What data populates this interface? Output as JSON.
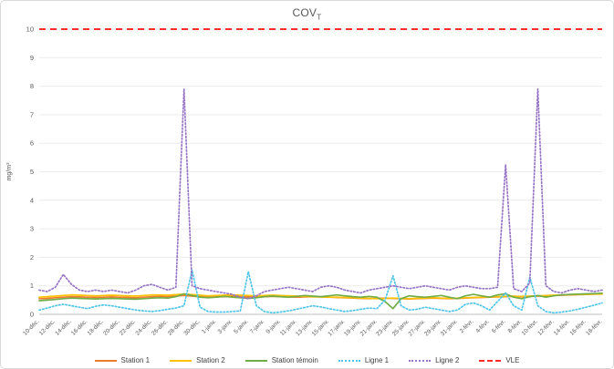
{
  "title": {
    "main": "COV",
    "sub": "T"
  },
  "colors": {
    "title_text": "#595959",
    "tick_labels": "#595959",
    "gridline": "#ececec",
    "axis_line": "#bfbfbf",
    "frame_border": "#d9d9d9"
  },
  "chart_data": {
    "type": "line",
    "title": "COV_T",
    "xlabel": "",
    "ylabel": "mg/m³",
    "ylim": [
      0,
      10
    ],
    "ytick_step": 1,
    "grid": true,
    "legend_position": "bottom",
    "n_points": 71,
    "x_labels": [
      "10-déc.",
      "12-déc.",
      "14-déc.",
      "16-déc.",
      "18-déc.",
      "20-déc.",
      "22-déc.",
      "24-déc.",
      "26-déc.",
      "28-déc.",
      "30-déc.",
      "1-janv.",
      "3-janv.",
      "5-janv.",
      "7-janv.",
      "9-janv.",
      "11-janv.",
      "13-janv.",
      "15-janv.",
      "17-janv.",
      "19-janv.",
      "21-janv.",
      "23-janv.",
      "25-janv.",
      "27-janv.",
      "29-janv.",
      "31-janv.",
      "2-févr.",
      "4-févr.",
      "6-févr.",
      "8-févr.",
      "10-févr.",
      "12-févr.",
      "14-févr.",
      "16-févr.",
      "18-févr."
    ],
    "series": [
      {
        "name": "Station 1",
        "color": "#ED7D31",
        "style": "solid",
        "values": [
          0.55,
          0.56,
          0.58,
          0.6,
          0.62,
          0.61,
          0.6,
          0.59,
          0.6,
          0.61,
          0.6,
          0.59,
          0.58,
          0.6,
          0.62,
          0.63,
          0.62,
          0.64,
          0.66,
          0.64,
          0.62,
          0.6,
          0.61,
          0.62,
          0.63,
          0.62,
          0.61,
          0.6,
          0.62,
          0.63,
          0.62,
          0.61,
          0.6,
          0.61,
          0.62,
          0.61,
          0.6,
          0.59,
          0.58,
          0.57,
          0.56,
          0.55,
          0.56,
          0.57,
          0.56,
          0.55,
          0.54,
          0.55,
          0.56,
          0.57,
          0.56,
          0.55,
          0.56,
          0.57,
          0.58,
          0.59,
          0.6,
          0.61,
          0.62,
          0.63,
          0.62,
          0.63,
          0.64,
          0.65,
          0.66,
          0.67,
          0.68,
          0.69,
          0.7,
          0.71,
          0.72
        ]
      },
      {
        "name": "Station 2",
        "color": "#FFC000",
        "style": "solid",
        "values": [
          0.6,
          0.62,
          0.64,
          0.66,
          0.68,
          0.67,
          0.66,
          0.65,
          0.66,
          0.67,
          0.66,
          0.65,
          0.64,
          0.66,
          0.68,
          0.68,
          0.67,
          0.69,
          0.71,
          0.69,
          0.67,
          0.65,
          0.66,
          0.67,
          0.68,
          0.67,
          0.66,
          0.65,
          0.66,
          0.67,
          0.66,
          0.65,
          0.64,
          0.63,
          0.62,
          0.61,
          0.6,
          0.6,
          0.59,
          0.58,
          0.57,
          0.56,
          0.55,
          0.56,
          0.57,
          0.56,
          0.55,
          0.56,
          0.57,
          0.58,
          0.57,
          0.56,
          0.57,
          0.58,
          0.59,
          0.6,
          0.61,
          0.62,
          0.63,
          0.64,
          0.63,
          0.64,
          0.65,
          0.66,
          0.67,
          0.68,
          0.69,
          0.7,
          0.7,
          0.71,
          0.71
        ]
      },
      {
        "name": "Station témoin",
        "color": "#70AD47",
        "style": "solid",
        "values": [
          0.48,
          0.5,
          0.52,
          0.55,
          0.57,
          0.56,
          0.55,
          0.54,
          0.55,
          0.56,
          0.55,
          0.54,
          0.53,
          0.55,
          0.57,
          0.58,
          0.57,
          0.62,
          0.72,
          0.66,
          0.6,
          0.58,
          0.6,
          0.63,
          0.6,
          0.58,
          0.56,
          0.58,
          0.62,
          0.64,
          0.62,
          0.6,
          0.63,
          0.66,
          0.64,
          0.62,
          0.65,
          0.68,
          0.65,
          0.62,
          0.6,
          0.63,
          0.6,
          0.45,
          0.2,
          0.55,
          0.65,
          0.62,
          0.6,
          0.63,
          0.66,
          0.6,
          0.55,
          0.65,
          0.7,
          0.65,
          0.6,
          0.68,
          0.72,
          0.6,
          0.55,
          0.62,
          0.66,
          0.6,
          0.65,
          0.68,
          0.7,
          0.71,
          0.72,
          0.73,
          0.74
        ]
      },
      {
        "name": "Ligne 1",
        "color": "#4FC5EA",
        "style": "dotted",
        "values": [
          0.15,
          0.22,
          0.3,
          0.35,
          0.3,
          0.25,
          0.2,
          0.28,
          0.33,
          0.3,
          0.25,
          0.2,
          0.15,
          0.12,
          0.1,
          0.13,
          0.18,
          0.22,
          0.3,
          1.55,
          0.25,
          0.1,
          0.08,
          0.08,
          0.1,
          0.12,
          1.5,
          0.3,
          0.1,
          0.05,
          0.08,
          0.12,
          0.18,
          0.24,
          0.3,
          0.26,
          0.2,
          0.15,
          0.1,
          0.13,
          0.18,
          0.22,
          0.2,
          0.5,
          1.35,
          0.3,
          0.15,
          0.18,
          0.25,
          0.2,
          0.15,
          0.1,
          0.15,
          0.35,
          0.4,
          0.3,
          0.15,
          0.45,
          0.75,
          0.3,
          0.15,
          1.3,
          0.3,
          0.1,
          0.05,
          0.08,
          0.12,
          0.18,
          0.25,
          0.32,
          0.4
        ]
      },
      {
        "name": "Ligne 2",
        "color": "#9673C6",
        "style": "dotted",
        "values": [
          0.85,
          0.8,
          0.95,
          1.4,
          1.05,
          0.85,
          0.8,
          0.85,
          0.8,
          0.85,
          0.8,
          0.75,
          0.85,
          1.0,
          1.05,
          0.95,
          0.85,
          0.95,
          7.9,
          1.0,
          0.9,
          0.85,
          0.8,
          0.75,
          0.7,
          0.6,
          0.55,
          0.65,
          0.8,
          0.85,
          0.9,
          0.95,
          0.9,
          0.85,
          0.8,
          0.95,
          1.0,
          0.95,
          0.85,
          0.8,
          0.75,
          0.85,
          0.9,
          0.95,
          1.0,
          0.95,
          0.9,
          0.95,
          1.0,
          0.95,
          0.9,
          0.85,
          0.95,
          1.0,
          0.95,
          0.9,
          0.9,
          0.95,
          5.25,
          0.9,
          0.8,
          1.1,
          7.9,
          1.0,
          0.8,
          0.75,
          0.85,
          0.9,
          0.85,
          0.8,
          0.85
        ]
      },
      {
        "name": "VLE",
        "color": "#FF2A2A",
        "style": "dashed",
        "constant": 10
      }
    ]
  }
}
